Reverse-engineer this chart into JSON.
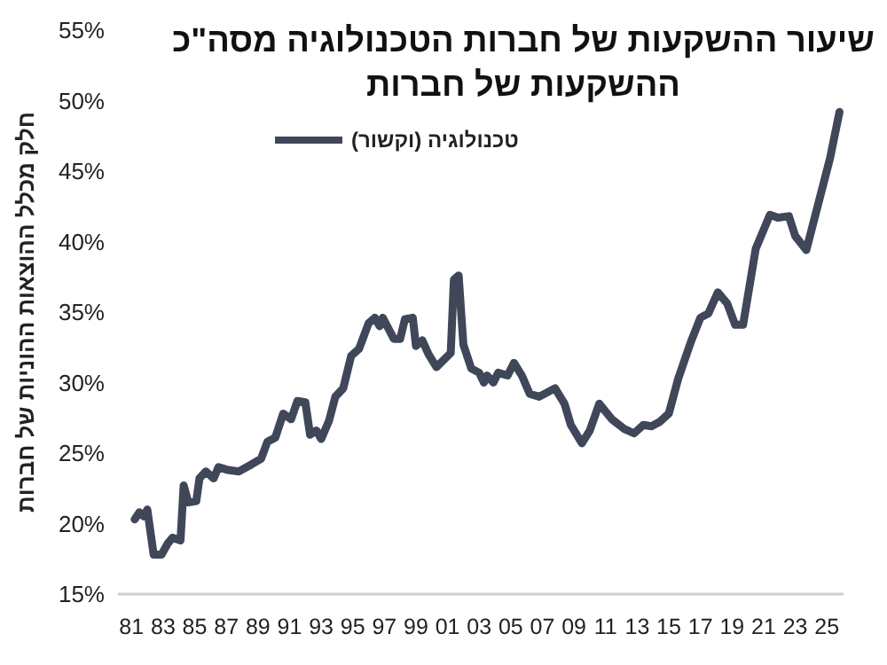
{
  "chart_data": {
    "type": "line",
    "title": "שיעור ההשקעות של חברות הטכנולוגיה מסה\"כ\nההשקעות של חברות",
    "ylabel": "חלק מכלל ההוצאות ההוניות של חברות",
    "series": [
      {
        "name": "טכנולוגיה (וקשור)",
        "color": "#3f4759",
        "x": [
          1981.2,
          1981.5,
          1981.8,
          1982.0,
          1982.4,
          1982.9,
          1983.3,
          1983.6,
          1984.1,
          1984.3,
          1984.6,
          1985.1,
          1985.3,
          1985.7,
          1986.2,
          1986.5,
          1987.1,
          1987.8,
          1988.6,
          1989.2,
          1989.6,
          1990.1,
          1990.6,
          1991.1,
          1991.5,
          1992.0,
          1992.3,
          1992.7,
          1993.0,
          1993.5,
          1993.9,
          1994.4,
          1994.9,
          1995.4,
          1996.0,
          1996.4,
          1996.7,
          1996.9,
          1997.6,
          1998.0,
          1998.3,
          1998.8,
          1999.0,
          1999.4,
          1999.8,
          2000.3,
          2001.2,
          2001.4,
          2001.7,
          2002.0,
          2002.5,
          2003.0,
          2003.3,
          2003.5,
          2003.9,
          2004.2,
          2004.8,
          2005.2,
          2005.7,
          2006.2,
          2006.8,
          2007.8,
          2008.4,
          2008.8,
          2009.5,
          2010.0,
          2010.6,
          2011.4,
          2012.2,
          2012.8,
          2013.4,
          2013.9,
          2014.4,
          2015.0,
          2015.6,
          2016.4,
          2017.0,
          2017.5,
          2018.1,
          2018.7,
          2019.2,
          2019.7,
          2020.5,
          2021.4,
          2021.9,
          2022.6,
          2023.0,
          2023.7,
          2024.3,
          2025.2,
          2025.8
        ],
        "values": [
          20.3,
          20.8,
          20.5,
          21.0,
          17.8,
          17.8,
          18.6,
          19.0,
          18.8,
          22.7,
          21.5,
          21.6,
          23.2,
          23.7,
          23.2,
          24.0,
          23.8,
          23.7,
          24.2,
          24.6,
          25.8,
          26.1,
          27.8,
          27.4,
          28.7,
          28.6,
          26.3,
          26.6,
          26.0,
          27.3,
          29.0,
          29.6,
          31.9,
          32.4,
          34.2,
          34.6,
          34.0,
          34.6,
          33.1,
          33.1,
          34.5,
          34.6,
          32.6,
          33.0,
          32.0,
          31.1,
          32.1,
          37.3,
          37.6,
          32.7,
          31.0,
          30.7,
          30.0,
          30.5,
          30.0,
          30.7,
          30.5,
          31.4,
          30.5,
          29.2,
          29.0,
          29.6,
          28.5,
          27.0,
          25.7,
          26.6,
          28.5,
          27.4,
          26.7,
          26.4,
          27.0,
          26.9,
          27.2,
          27.8,
          30.3,
          32.9,
          34.6,
          34.9,
          36.4,
          35.6,
          34.1,
          34.1,
          39.5,
          41.9,
          41.7,
          41.8,
          40.4,
          39.4,
          42.0,
          45.9,
          49.2
        ]
      }
    ],
    "xlim": [
      1980.2,
      2026
    ],
    "xticks": [
      {
        "value": 1981,
        "label": "81"
      },
      {
        "value": 1983,
        "label": "83"
      },
      {
        "value": 1985,
        "label": "85"
      },
      {
        "value": 1987,
        "label": "87"
      },
      {
        "value": 1989,
        "label": "89"
      },
      {
        "value": 1991,
        "label": "91"
      },
      {
        "value": 1993,
        "label": "93"
      },
      {
        "value": 1995,
        "label": "95"
      },
      {
        "value": 1997,
        "label": "97"
      },
      {
        "value": 1999,
        "label": "99"
      },
      {
        "value": 2001,
        "label": "01"
      },
      {
        "value": 2003,
        "label": "03"
      },
      {
        "value": 2005,
        "label": "05"
      },
      {
        "value": 2007,
        "label": "07"
      },
      {
        "value": 2009,
        "label": "09"
      },
      {
        "value": 2011,
        "label": "11"
      },
      {
        "value": 2013,
        "label": "13"
      },
      {
        "value": 2015,
        "label": "15"
      },
      {
        "value": 2017,
        "label": "17"
      },
      {
        "value": 2019,
        "label": "19"
      },
      {
        "value": 2021,
        "label": "21"
      },
      {
        "value": 2023,
        "label": "23"
      },
      {
        "value": 2025,
        "label": "25"
      }
    ],
    "ylim": [
      15,
      55
    ],
    "yticks": [
      {
        "value": 15,
        "label": "15%"
      },
      {
        "value": 20,
        "label": "20%"
      },
      {
        "value": 25,
        "label": "25%"
      },
      {
        "value": 30,
        "label": "30%"
      },
      {
        "value": 35,
        "label": "35%"
      },
      {
        "value": 40,
        "label": "40%"
      },
      {
        "value": 45,
        "label": "45%"
      },
      {
        "value": 50,
        "label": "50%"
      },
      {
        "value": 55,
        "label": "55%"
      }
    ],
    "grid": false,
    "legend": "top left",
    "marker": "none",
    "line_style": "solid"
  }
}
